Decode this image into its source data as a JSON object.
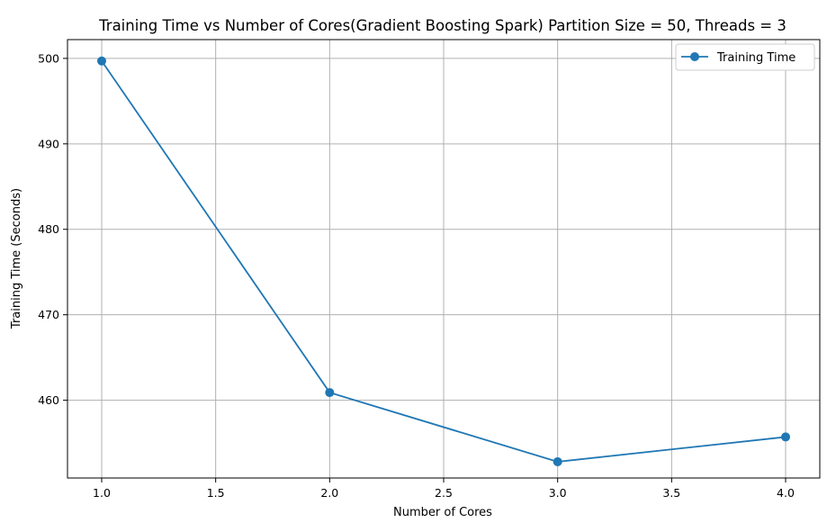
{
  "chart_data": {
    "type": "line",
    "title": "Training Time vs Number of Cores(Gradient Boosting Spark) Partition Size = 50, Threads = 3",
    "xlabel": "Number of Cores",
    "ylabel": "Training Time (Seconds)",
    "x": [
      1.0,
      2.0,
      3.0,
      4.0
    ],
    "series": [
      {
        "name": "Training Time",
        "values": [
          499.7,
          460.9,
          452.8,
          455.7
        ],
        "color": "#1f77b4",
        "marker": "circle"
      }
    ],
    "xlim": [
      0.85,
      4.15
    ],
    "ylim": [
      450.9,
      502.2
    ],
    "xticks": [
      1.0,
      1.5,
      2.0,
      2.5,
      3.0,
      3.5,
      4.0
    ],
    "xtick_labels": [
      "1.0",
      "1.5",
      "2.0",
      "2.5",
      "3.0",
      "3.5",
      "4.0"
    ],
    "yticks": [
      460,
      470,
      480,
      490,
      500
    ],
    "ytick_labels": [
      "460",
      "470",
      "480",
      "490",
      "500"
    ],
    "grid": true,
    "legend": {
      "position": "top-right",
      "entries": [
        "Training Time"
      ]
    }
  }
}
